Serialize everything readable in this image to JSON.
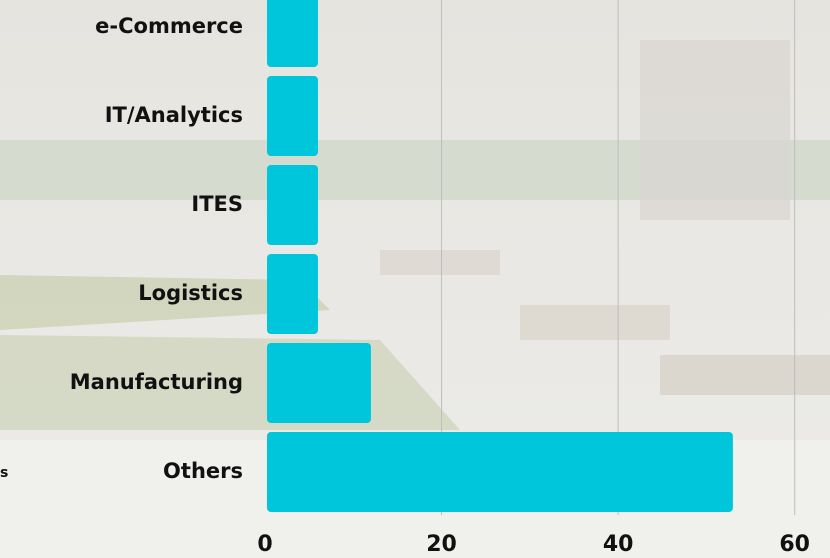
{
  "chart_data": {
    "type": "bar",
    "orientation": "horizontal",
    "categories": [
      "e-Commerce",
      "IT/Analytics",
      "ITES",
      "Logistics",
      "Manufacturing",
      "Others"
    ],
    "values": [
      6,
      6,
      6,
      6,
      12,
      53
    ],
    "color": "#00c6db",
    "xlim": [
      0,
      64
    ],
    "xticks": [
      0,
      20,
      40,
      60
    ],
    "grid": true,
    "fragment_text": "s"
  }
}
